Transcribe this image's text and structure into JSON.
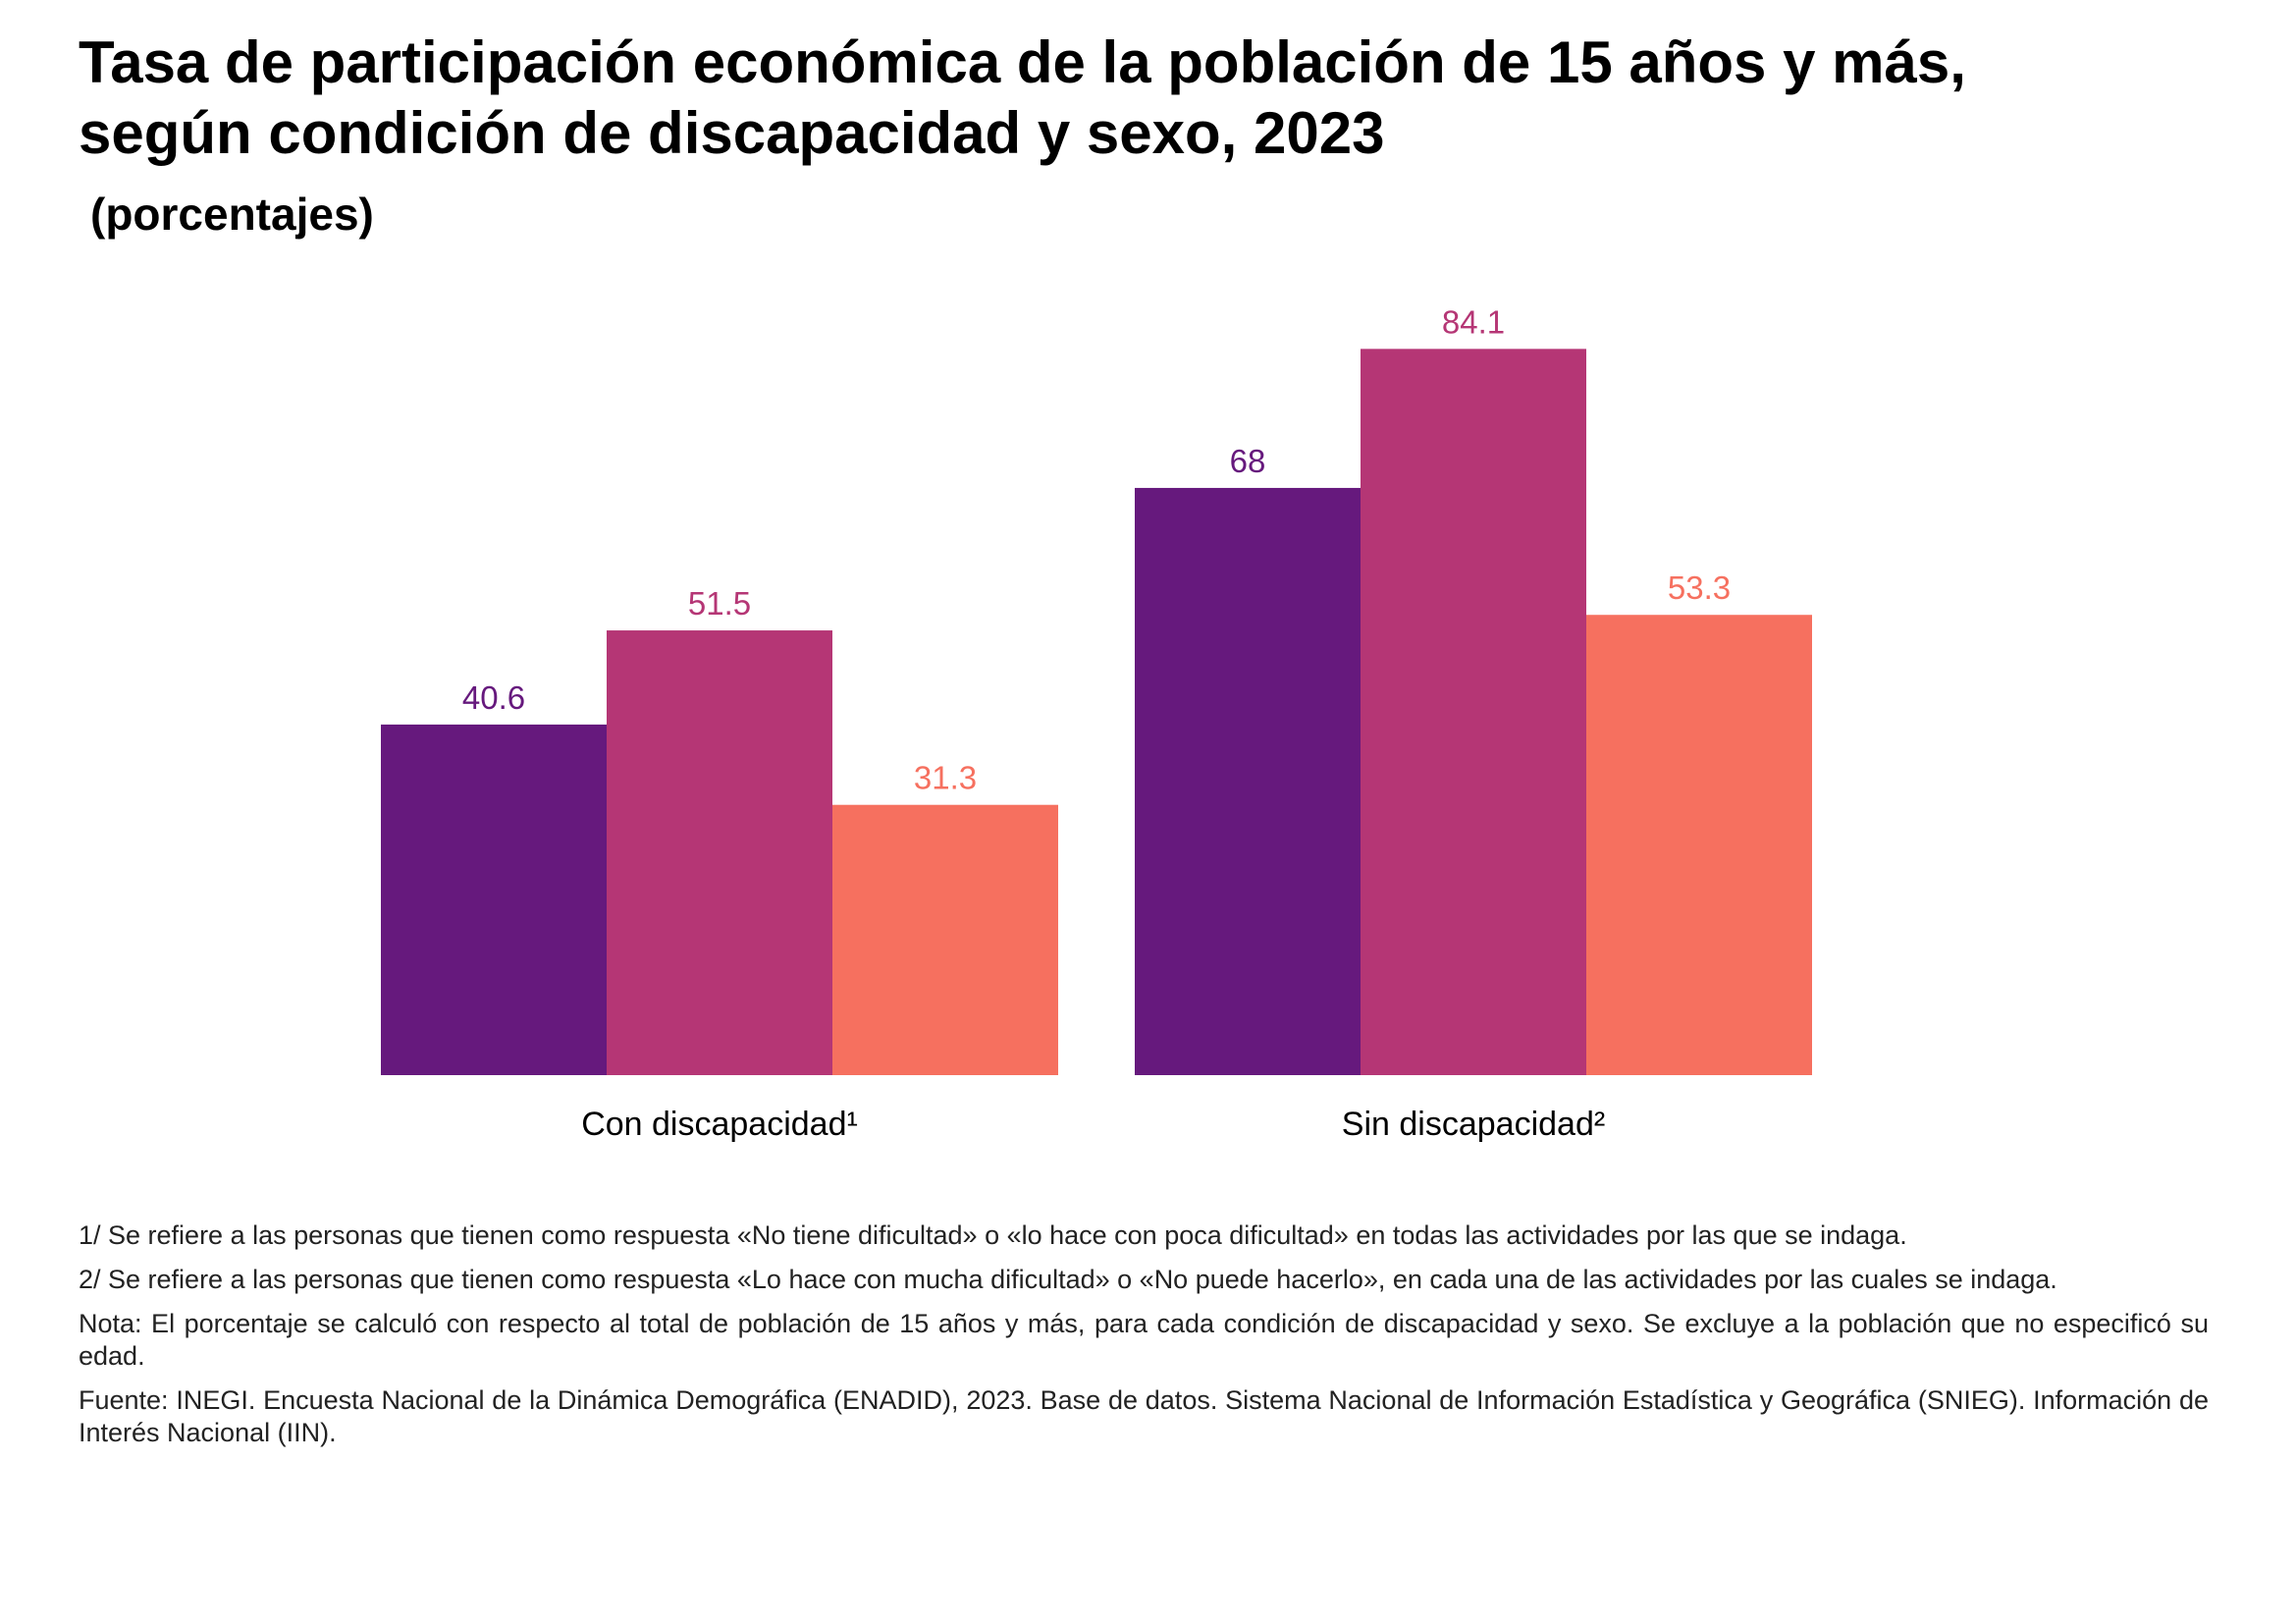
{
  "title_line1": "Tasa de participación económica de la población de 15 años y más,",
  "title_line2": "según condición de discapacidad y sexo, 2023",
  "subtitle": "(porcentajes)",
  "colors": {
    "series1": "#66197d",
    "series2": "#b53675",
    "series3": "#f6705f"
  },
  "chart_data": {
    "type": "bar",
    "categories": [
      "Con discapacidad¹",
      "Sin discapacidad²"
    ],
    "series": [
      {
        "values": [
          40.6,
          68
        ]
      },
      {
        "values": [
          51.5,
          84.1
        ]
      },
      {
        "values": [
          31.3,
          53.3
        ]
      }
    ],
    "ylim": [
      0,
      100
    ],
    "grid": false,
    "legend": "none"
  },
  "notes": [
    "1/ Se refiere a las personas que tienen como respuesta «No tiene dificultad» o «lo hace con poca dificultad» en todas las actividades por las que se indaga.",
    "2/ Se refiere a las personas que tienen como respuesta «Lo hace con mucha dificultad» o «No puede hacerlo», en cada una de las actividades por las cuales se indaga.",
    "Nota: El porcentaje se calculó con respecto al total de población de 15 años y más, para cada condición de discapacidad y sexo. Se excluye a la población que no especificó su edad.",
    "Fuente: INEGI. Encuesta Nacional de la Dinámica Demográfica (ENADID), 2023. Base de datos. Sistema Nacional de Información Estadística y Geográfica (SNIEG). Información de Interés Nacional (IIN)."
  ]
}
